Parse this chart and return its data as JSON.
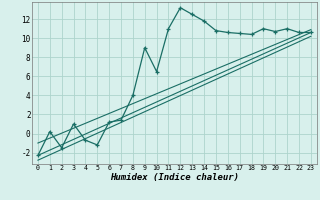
{
  "xlabel": "Humidex (Indice chaleur)",
  "bg_color": "#d8f0ec",
  "grid_color": "#aed4cc",
  "line_color": "#1a6e65",
  "xlim": [
    -0.5,
    23.5
  ],
  "ylim": [
    -3.2,
    13.8
  ],
  "yticks": [
    -2,
    0,
    2,
    4,
    6,
    8,
    10,
    12
  ],
  "xticks": [
    0,
    1,
    2,
    3,
    4,
    5,
    6,
    7,
    8,
    9,
    10,
    11,
    12,
    13,
    14,
    15,
    16,
    17,
    18,
    19,
    20,
    21,
    22,
    23
  ],
  "main_x": [
    0,
    1,
    2,
    3,
    4,
    5,
    6,
    7,
    8,
    9,
    10,
    11,
    12,
    13,
    14,
    15,
    16,
    17,
    18,
    19,
    20,
    21,
    22,
    23
  ],
  "main_y": [
    -2.3,
    0.2,
    -1.5,
    1.0,
    -0.7,
    -1.2,
    1.2,
    1.4,
    4.0,
    9.0,
    6.5,
    11.0,
    13.2,
    12.5,
    11.8,
    10.8,
    10.6,
    10.5,
    10.4,
    11.0,
    10.7,
    11.0,
    10.6,
    10.6
  ],
  "line2_x": [
    0,
    23
  ],
  "line2_y": [
    -2.3,
    10.6
  ],
  "line3_x": [
    0,
    23
  ],
  "line3_y": [
    -1.0,
    10.9
  ],
  "line4_x": [
    0,
    23
  ],
  "line4_y": [
    -2.8,
    10.2
  ]
}
